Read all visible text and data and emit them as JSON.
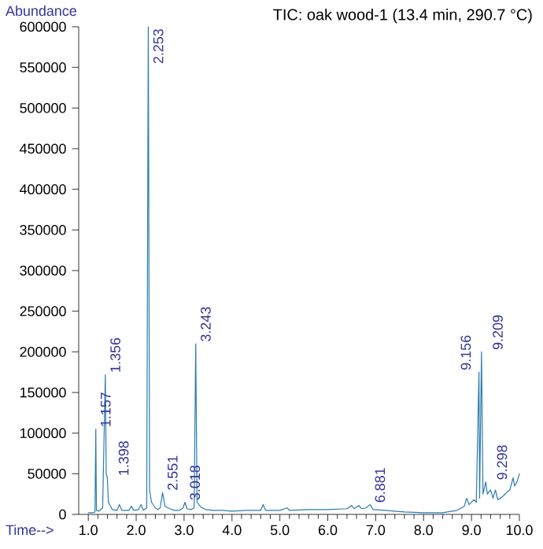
{
  "chart_data": {
    "type": "line",
    "title": "TIC: oak wood-1 (13.4 min, 290.7 °C)",
    "xlabel": "Time-->",
    "ylabel": "Abundance",
    "xlim": [
      0.8,
      10.0
    ],
    "ylim": [
      0,
      600000
    ],
    "xticks": [
      {
        "value": 1,
        "label": "1.0"
      },
      {
        "value": 2,
        "label": "2.0"
      },
      {
        "value": 3,
        "label": "3.0"
      },
      {
        "value": 4,
        "label": "4.0"
      },
      {
        "value": 5,
        "label": "5.0"
      },
      {
        "value": 6,
        "label": "6.0"
      },
      {
        "value": 7,
        "label": "7.0"
      },
      {
        "value": 8,
        "label": "8.0"
      },
      {
        "value": 9,
        "label": "9.0"
      },
      {
        "value": 10,
        "label": "10.0"
      }
    ],
    "yticks": [
      0,
      50000,
      100000,
      150000,
      200000,
      250000,
      300000,
      350000,
      400000,
      450000,
      500000,
      550000,
      600000
    ],
    "grid": false,
    "marker": "none",
    "line_style": "solid",
    "series": [
      {
        "color": "#2b7bb0",
        "x": [
          1.0,
          1.1,
          1.14,
          1.157,
          1.17,
          1.22,
          1.26,
          1.3,
          1.356,
          1.375,
          1.398,
          1.42,
          1.5,
          1.6,
          1.65,
          1.7,
          1.85,
          1.9,
          1.95,
          2.05,
          2.1,
          2.15,
          2.22,
          2.253,
          2.28,
          2.32,
          2.4,
          2.45,
          2.5,
          2.551,
          2.6,
          2.7,
          2.8,
          2.9,
          2.98,
          3.018,
          3.06,
          3.15,
          3.21,
          3.243,
          3.27,
          3.35,
          3.45,
          3.6,
          3.8,
          4.0,
          4.3,
          4.6,
          4.65,
          4.7,
          5.0,
          5.15,
          5.2,
          5.6,
          6.0,
          6.4,
          6.5,
          6.55,
          6.65,
          6.7,
          6.8,
          6.881,
          6.95,
          7.2,
          7.6,
          8.0,
          8.4,
          8.7,
          8.85,
          8.9,
          8.95,
          9.05,
          9.1,
          9.156,
          9.17,
          9.209,
          9.24,
          9.298,
          9.33,
          9.4,
          9.45,
          9.5,
          9.55,
          9.65,
          9.75,
          9.8,
          9.87,
          9.9,
          9.95,
          10.0
        ],
        "values": [
          2000,
          2000,
          3000,
          105000,
          5000,
          4000,
          6000,
          8000,
          172000,
          50000,
          45000,
          15000,
          6000,
          5000,
          12000,
          5000,
          5000,
          10000,
          5000,
          6000,
          12000,
          5000,
          8000,
          600000,
          30000,
          15000,
          8000,
          6000,
          8000,
          27000,
          10000,
          7000,
          5000,
          5000,
          8000,
          15000,
          7000,
          6000,
          8000,
          210000,
          15000,
          9000,
          6000,
          5000,
          5000,
          4000,
          5000,
          5000,
          12000,
          5000,
          5000,
          8000,
          5000,
          6000,
          6000,
          7000,
          11000,
          7000,
          11000,
          7000,
          8000,
          12000,
          6000,
          5000,
          3000,
          2000,
          2000,
          5000,
          10000,
          20000,
          12000,
          18000,
          15000,
          175000,
          20000,
          200000,
          25000,
          40000,
          25000,
          30000,
          20000,
          30000,
          18000,
          22000,
          28000,
          30000,
          45000,
          35000,
          40000,
          50000
        ]
      }
    ],
    "annotations": [
      {
        "text": "1.157",
        "x": 1.157,
        "y": 105000
      },
      {
        "text": "1.356",
        "x": 1.356,
        "y": 172000
      },
      {
        "text": "1.398",
        "x": 1.398,
        "y": 45000
      },
      {
        "text": "2.253",
        "x": 2.253,
        "y": 600000
      },
      {
        "text": "2.551",
        "x": 2.551,
        "y": 27000
      },
      {
        "text": "3.018",
        "x": 3.018,
        "y": 15000
      },
      {
        "text": "3.243",
        "x": 3.243,
        "y": 210000
      },
      {
        "text": "6.881",
        "x": 6.881,
        "y": 12000
      },
      {
        "text": "9.156",
        "x": 9.156,
        "y": 175000
      },
      {
        "text": "9.209",
        "x": 9.209,
        "y": 200000
      },
      {
        "text": "9.298",
        "x": 9.298,
        "y": 40000
      }
    ]
  }
}
